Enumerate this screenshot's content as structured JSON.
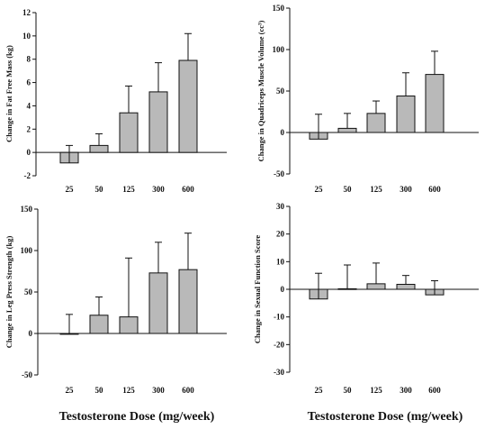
{
  "chart_data": [
    {
      "type": "bar",
      "categories": [
        "25",
        "50",
        "125",
        "300",
        "600"
      ],
      "values": [
        -0.9,
        0.6,
        3.4,
        5.2,
        7.9
      ],
      "error_bars": [
        1.5,
        1.0,
        2.3,
        2.5,
        2.3
      ],
      "ylabel": "Change in Fat Free Mass (kg)",
      "ylim": [
        -2,
        12
      ],
      "yticks": [
        -2,
        0,
        2,
        4,
        6,
        8,
        10,
        12
      ],
      "grid": false
    },
    {
      "type": "bar",
      "categories": [
        "25",
        "50",
        "125",
        "300",
        "600"
      ],
      "values": [
        -8,
        5,
        23,
        44,
        70
      ],
      "error_bars": [
        30,
        18,
        15,
        28,
        28
      ],
      "ylabel": "Change in Quadriceps Muscle Volume (cc³)",
      "ylim": [
        -50,
        150
      ],
      "yticks": [
        -50,
        0,
        50,
        100,
        150
      ],
      "grid": false
    },
    {
      "type": "bar",
      "categories": [
        "25",
        "50",
        "125",
        "300",
        "600"
      ],
      "values": [
        -1,
        22,
        20,
        73,
        77
      ],
      "error_bars": [
        24,
        22,
        71,
        37,
        44
      ],
      "ylabel": "Change in Leg Press Strength (kg)",
      "ylim": [
        -50,
        150
      ],
      "yticks": [
        -50,
        0,
        50,
        100,
        150
      ],
      "grid": false
    },
    {
      "type": "bar",
      "categories": [
        "25",
        "50",
        "125",
        "300",
        "600"
      ],
      "values": [
        -3.5,
        0.2,
        2.0,
        1.8,
        -2.0
      ],
      "error_bars": [
        9.3,
        8.6,
        7.5,
        3.2,
        5.1
      ],
      "ylabel": "Change in Sexual Function Score",
      "ylim": [
        -30,
        30
      ],
      "yticks": [
        -30,
        -20,
        -10,
        0,
        10,
        20,
        30
      ],
      "grid": false
    }
  ],
  "xlabels": [
    "Testosterone Dose (mg/week)",
    "Testosterone Dose (mg/week)"
  ],
  "colors": {
    "bar_fill": "#b9b9b9",
    "stroke": "#111111",
    "background": "#ffffff"
  }
}
